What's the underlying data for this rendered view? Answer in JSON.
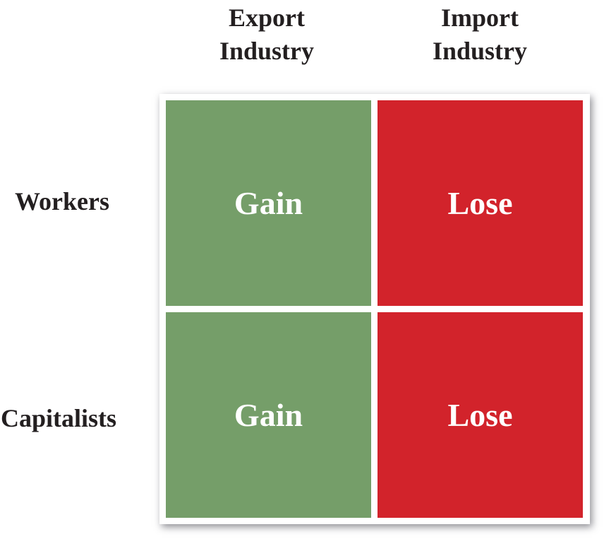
{
  "columns": [
    {
      "line1": "Export",
      "line2": "Industry"
    },
    {
      "line1": "Import",
      "line2": "Industry"
    }
  ],
  "rows": [
    "Workers",
    "Capitalists"
  ],
  "cells": [
    [
      "Gain",
      "Lose"
    ],
    [
      "Gain",
      "Lose"
    ]
  ],
  "colors": {
    "gain": "#759e69",
    "lose": "#d2232b",
    "text": "#231f20",
    "cell_text": "#ffffff"
  }
}
